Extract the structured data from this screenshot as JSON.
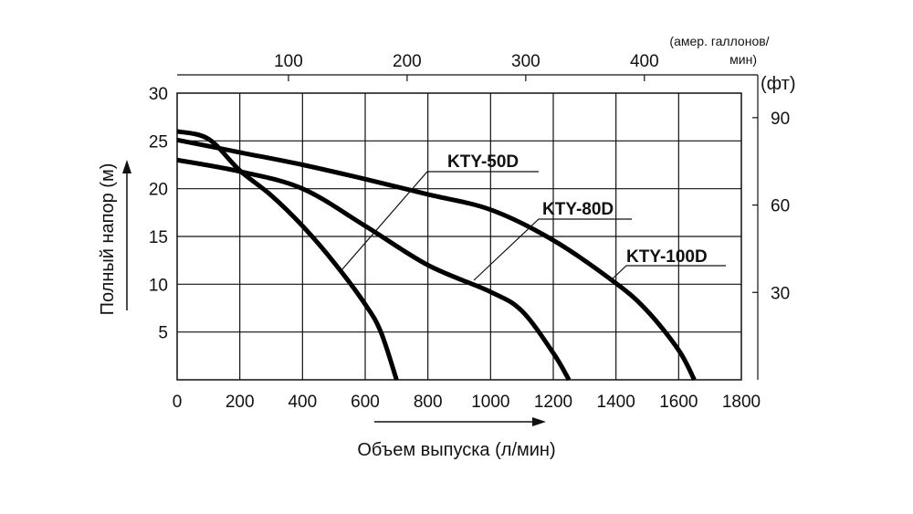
{
  "chart_data": {
    "type": "line",
    "xlabel": "Объем выпуска (л/мин)",
    "ylabel": "Полный напор (м)",
    "xlim": [
      0,
      1800
    ],
    "ylim": [
      0,
      30
    ],
    "xticks": [
      0,
      200,
      400,
      600,
      800,
      1000,
      1200,
      1400,
      1600,
      1800
    ],
    "yticks": [
      5,
      10,
      15,
      20,
      25,
      30
    ],
    "yticks_label_zero": "0",
    "grid": true,
    "secondary_x": {
      "label_line1": "(амер. галлонов/",
      "label_line2": "мин)",
      "ticks": [
        100,
        200,
        300,
        400
      ]
    },
    "secondary_y": {
      "label": "(фт)",
      "ticks": [
        30,
        60,
        90
      ]
    },
    "series": [
      {
        "name": "KTY-50D",
        "x": [
          0,
          100,
          200,
          300,
          400,
          500,
          600,
          650,
          700
        ],
        "y": [
          26,
          25.2,
          21.9,
          19.3,
          16.1,
          12.3,
          7.9,
          5,
          0
        ]
      },
      {
        "name": "KTY-80D",
        "x": [
          0,
          200,
          400,
          600,
          800,
          1000,
          1100,
          1200,
          1250
        ],
        "y": [
          23,
          21.8,
          20,
          16.1,
          12,
          9.2,
          7.2,
          2.8,
          0
        ]
      },
      {
        "name": "KTY-100D",
        "x": [
          0,
          200,
          400,
          600,
          800,
          1000,
          1200,
          1400,
          1500,
          1600,
          1650
        ],
        "y": [
          25.1,
          23.8,
          22.5,
          21,
          19.4,
          17.8,
          14.6,
          10.1,
          7.2,
          3.1,
          0
        ]
      }
    ],
    "line_color": "#000000"
  }
}
